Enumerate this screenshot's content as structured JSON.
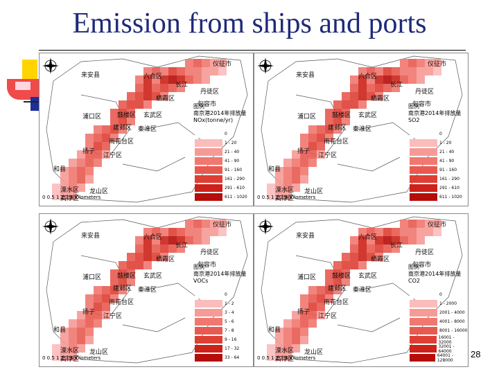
{
  "title": "Emission from ships and ports",
  "page_number": "28",
  "colors": [
    "#fde2e2",
    "#fbbcbc",
    "#f69a96",
    "#f07870",
    "#e85a50",
    "#de3f34",
    "#cc221a",
    "#b50d0a"
  ],
  "panels": [
    {
      "places": [
        "六合区",
        "仪征市",
        "栖霞区",
        "来安县",
        "长江",
        "丹徒区",
        "浦口区",
        "句容市",
        "鼓楼区",
        "玄武区",
        "建邺区",
        "秦淮区",
        "雨花台区",
        "江宁区",
        "扬子",
        "和县",
        "溧水区",
        "高淳区",
        "龙山区"
      ],
      "legend_title": [
        "图例",
        "南京港2014年排放量",
        "NOx(tonne/yr)"
      ],
      "legend_ranges": [
        "0",
        "1 - 20",
        "21 - 40",
        "41 - 90",
        "91 - 160",
        "161 - 290",
        "291 - 610",
        "611 - 1020"
      ],
      "scale": {
        "ticks": "0 0.5 1    2    3    4",
        "unit": "Kilometers"
      }
    },
    {
      "places": [
        "六合区",
        "仪征市",
        "栖霞区",
        "来安县",
        "长江",
        "丹徒区",
        "浦口区",
        "句容市",
        "鼓楼区",
        "玄武区",
        "建邺区",
        "秦淮区",
        "雨花台区",
        "江宁区",
        "扬子",
        "和县",
        "溧水区",
        "高淳区",
        "龙山区"
      ],
      "legend_title": [
        "图例",
        "南京港2014年排放量",
        "SO2"
      ],
      "legend_ranges": [
        "0",
        "1 - 20",
        "21 - 40",
        "41 - 90",
        "91 - 160",
        "161 - 290",
        "291 - 610",
        "611 - 1020"
      ],
      "scale": {
        "ticks": "0 0.5 1    2    3    4",
        "unit": "Kilometers"
      }
    },
    {
      "places": [
        "六合区",
        "仪征市",
        "栖霞区",
        "来安县",
        "长江",
        "丹徒区",
        "浦口区",
        "句容市",
        "鼓楼区",
        "玄武区",
        "建邺区",
        "秦淮区",
        "雨花台区",
        "江宁区",
        "扬子",
        "和县",
        "溧水区",
        "高淳区",
        "龙山区"
      ],
      "legend_title": [
        "图例",
        "南京港2014年排放量",
        "VOCs"
      ],
      "legend_ranges": [
        "0",
        "1 - 2",
        "3 - 4",
        "5 - 6",
        "7 - 8",
        "9 - 16",
        "17 - 32",
        "33 - 64"
      ],
      "scale": {
        "ticks": "0 0.5 1    2    3    4",
        "unit": "Kilometers"
      }
    },
    {
      "places": [
        "六合区",
        "仪征市",
        "栖霞区",
        "来安县",
        "长江",
        "丹徒区",
        "浦口区",
        "句容市",
        "鼓楼区",
        "玄武区",
        "建邺区",
        "秦淮区",
        "雨花台区",
        "江宁区",
        "扬子",
        "和县",
        "溧水区",
        "高淳区",
        "龙山区"
      ],
      "legend_title": [
        "图例",
        "南京港2014年排放量",
        "CO2"
      ],
      "legend_ranges": [
        "0",
        "1 - 2000",
        "2001 - 4000",
        "4001 - 8000",
        "8001 - 16000",
        "16001 - 32000",
        "32001 - 64000",
        "64001 - 128000"
      ],
      "scale": {
        "ticks": "0 0.5 1    2    3    4",
        "unit": "Kilometers"
      }
    }
  ]
}
